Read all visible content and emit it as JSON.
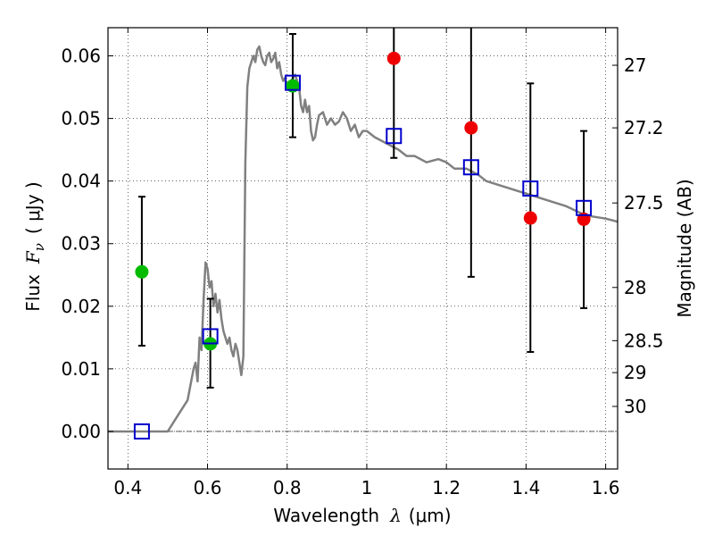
{
  "chart_data": {
    "type": "scatter",
    "xlabel_prefix": "Wavelength",
    "xlabel_symbol": "λ",
    "xlabel_unit": "(μm)",
    "ylabel_prefix": "Flux",
    "ylabel_symbol": "F",
    "ylabel_subscript": "ν",
    "ylabel_unit": "( μJy )",
    "y2label": "Magnitude (AB)",
    "xlim": [
      0.35,
      1.63
    ],
    "ylim": [
      -0.006,
      0.0645
    ],
    "grid": true,
    "x_ticks": [
      {
        "value": 0.4,
        "label": "0.4"
      },
      {
        "value": 0.6,
        "label": "0.6"
      },
      {
        "value": 0.8,
        "label": "0.8"
      },
      {
        "value": 1.0,
        "label": "1"
      },
      {
        "value": 1.2,
        "label": "1.2"
      },
      {
        "value": 1.4,
        "label": "1.4"
      },
      {
        "value": 1.6,
        "label": "1.6"
      }
    ],
    "y_ticks": [
      {
        "value": 0.0,
        "label": "0.00"
      },
      {
        "value": 0.01,
        "label": "0.01"
      },
      {
        "value": 0.02,
        "label": "0.02"
      },
      {
        "value": 0.03,
        "label": "0.03"
      },
      {
        "value": 0.04,
        "label": "0.04"
      },
      {
        "value": 0.05,
        "label": "0.05"
      },
      {
        "value": 0.06,
        "label": "0.06"
      }
    ],
    "y2_ticks": [
      {
        "flux": 0.0585,
        "label": "27"
      },
      {
        "flux": 0.0485,
        "label": "27.2"
      },
      {
        "flux": 0.0365,
        "label": "27.5"
      },
      {
        "flux": 0.023,
        "label": "28"
      },
      {
        "flux": 0.0145,
        "label": "28.5"
      },
      {
        "flux": 0.0094,
        "label": "29"
      },
      {
        "flux": 0.004,
        "label": "30"
      }
    ],
    "colors": {
      "model": "#808080",
      "green": "#00bb00",
      "red": "#ee0000",
      "squares": "#0000cc",
      "errorbar": "#000000"
    },
    "series": [
      {
        "name": "model-spectrum",
        "kind": "line",
        "x": [
          0.35,
          0.5,
          0.52,
          0.55,
          0.565,
          0.57,
          0.575,
          0.58,
          0.585,
          0.59,
          0.595,
          0.6,
          0.605,
          0.61,
          0.615,
          0.62,
          0.625,
          0.63,
          0.635,
          0.64,
          0.645,
          0.65,
          0.655,
          0.66,
          0.665,
          0.67,
          0.675,
          0.68,
          0.685,
          0.69,
          0.695,
          0.7,
          0.705,
          0.71,
          0.715,
          0.72,
          0.725,
          0.73,
          0.735,
          0.74,
          0.745,
          0.75,
          0.755,
          0.76,
          0.765,
          0.77,
          0.775,
          0.78,
          0.785,
          0.79,
          0.795,
          0.8,
          0.81,
          0.82,
          0.83,
          0.835,
          0.84,
          0.845,
          0.85,
          0.855,
          0.86,
          0.865,
          0.87,
          0.875,
          0.88,
          0.89,
          0.9,
          0.91,
          0.92,
          0.93,
          0.94,
          0.95,
          0.96,
          0.97,
          0.98,
          0.99,
          1.0,
          1.02,
          1.05,
          1.08,
          1.1,
          1.12,
          1.15,
          1.18,
          1.2,
          1.22,
          1.25,
          1.28,
          1.3,
          1.35,
          1.4,
          1.45,
          1.5,
          1.55,
          1.6,
          1.63
        ],
        "y": [
          0.0,
          0.0,
          0.002,
          0.005,
          0.01,
          0.011,
          0.008,
          0.015,
          0.013,
          0.021,
          0.027,
          0.026,
          0.023,
          0.024,
          0.02,
          0.022,
          0.019,
          0.021,
          0.018,
          0.016,
          0.015,
          0.014,
          0.015,
          0.013,
          0.012,
          0.014,
          0.013,
          0.011,
          0.009,
          0.012,
          0.043,
          0.055,
          0.058,
          0.059,
          0.06,
          0.059,
          0.061,
          0.0615,
          0.06,
          0.059,
          0.0585,
          0.06,
          0.0605,
          0.059,
          0.0595,
          0.0605,
          0.058,
          0.059,
          0.057,
          0.056,
          0.0565,
          0.055,
          0.056,
          0.057,
          0.055,
          0.052,
          0.051,
          0.053,
          0.051,
          0.052,
          0.048,
          0.0465,
          0.047,
          0.049,
          0.0505,
          0.051,
          0.049,
          0.05,
          0.049,
          0.0495,
          0.051,
          0.05,
          0.048,
          0.049,
          0.047,
          0.048,
          0.048,
          0.047,
          0.046,
          0.045,
          0.044,
          0.044,
          0.043,
          0.0435,
          0.043,
          0.042,
          0.042,
          0.041,
          0.04,
          0.039,
          0.038,
          0.037,
          0.036,
          0.0345,
          0.034,
          0.0335
        ]
      },
      {
        "name": "green-points",
        "kind": "errorbar-circle",
        "color": "green",
        "points": [
          {
            "x": 0.435,
            "y": 0.0255,
            "ylow": 0.0137,
            "yhigh": 0.0375
          },
          {
            "x": 0.607,
            "y": 0.014,
            "ylow": 0.007,
            "yhigh": 0.0212
          },
          {
            "x": 0.814,
            "y": 0.0552,
            "ylow": 0.047,
            "yhigh": 0.0635
          }
        ]
      },
      {
        "name": "red-points",
        "kind": "errorbar-circle",
        "color": "red",
        "points": [
          {
            "x": 1.068,
            "y": 0.0596,
            "ylow": 0.0437,
            "yhigh": 0.065
          },
          {
            "x": 1.262,
            "y": 0.0485,
            "ylow": 0.0247,
            "yhigh": 0.065
          },
          {
            "x": 1.411,
            "y": 0.0341,
            "ylow": 0.0127,
            "yhigh": 0.0556
          },
          {
            "x": 1.545,
            "y": 0.0339,
            "ylow": 0.0197,
            "yhigh": 0.048
          }
        ]
      },
      {
        "name": "model-band-fluxes",
        "kind": "open-square",
        "color": "squares",
        "points": [
          {
            "x": 0.435,
            "y": 0.0
          },
          {
            "x": 0.607,
            "y": 0.0152
          },
          {
            "x": 0.814,
            "y": 0.0557
          },
          {
            "x": 1.068,
            "y": 0.0472
          },
          {
            "x": 1.262,
            "y": 0.0422
          },
          {
            "x": 1.411,
            "y": 0.0388
          },
          {
            "x": 1.545,
            "y": 0.0357
          }
        ]
      }
    ]
  }
}
